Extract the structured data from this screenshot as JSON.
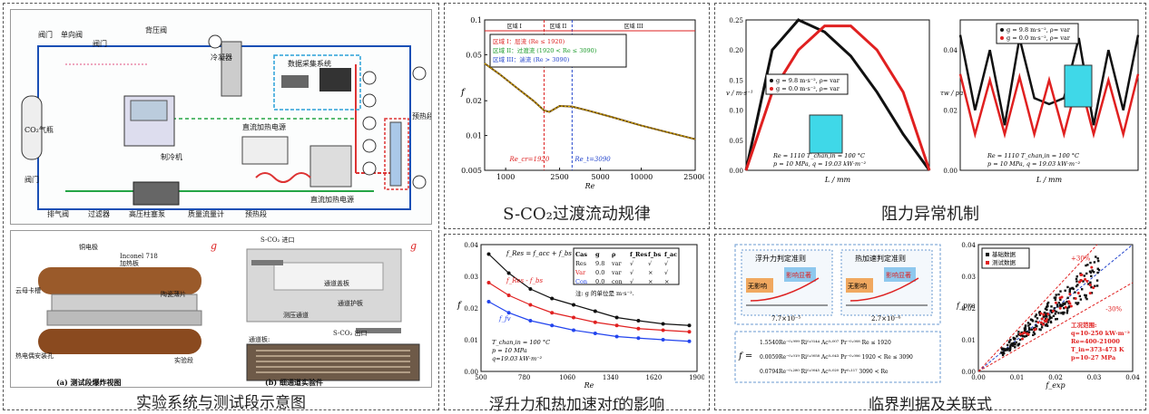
{
  "captions": {
    "left": "实验系统与测试段示意图",
    "mid_top": "S-CO₂过渡流动规律",
    "mid_bot": "浮升力和热加速对f的影响",
    "right_top": "阻力异常机制",
    "right_bot": "临界判据及关联式"
  },
  "schematic": {
    "labels": [
      "阀门",
      "单向阀",
      "阀门",
      "背压阀",
      "冷凝器",
      "数据采集系统",
      "CO₂气瓶",
      "制冷机",
      "直流加热电源",
      "直流加热电源",
      "预热段",
      "排气阀",
      "阀门",
      "过滤器",
      "高压柱塞泵",
      "质量流量计",
      "预热段"
    ],
    "sensors": [
      "T",
      "T",
      "P",
      "T",
      "T",
      "T",
      "T",
      "P"
    ]
  },
  "testsec": {
    "a_labels": [
      "铜电极",
      "Inconel 718加热板",
      "陶瓷薄片",
      "云母卡槽",
      "热电偶安装孔",
      "实验段"
    ],
    "b_labels": [
      "S-CO₂ 进口",
      "通道盖板",
      "通道护板",
      "测压通道",
      "S-CO₂ 出口",
      "通道板:"
    ],
    "a_caption": "(a) 测试段爆炸视图",
    "b_caption": "(b) 细通道实验件"
  },
  "chart_data": [
    {
      "type": "line",
      "title": "",
      "xlabel": "Re",
      "ylabel": "f",
      "yscale": "log",
      "xscale": "log",
      "xlim": [
        700,
        25000
      ],
      "ylim": [
        0.005,
        0.1
      ],
      "xticks": [
        "1000",
        "2500",
        "5000",
        "10000",
        "25000"
      ],
      "yticks": [
        "0.005",
        "0.01",
        "0.02",
        "0.05",
        "0.1"
      ],
      "regions": [
        "区域 I",
        "区域 II",
        "区域 III"
      ],
      "legend": [
        "区域 I：层流 (Re ≤ 1920)",
        "区域 II：过渡流 (1920 < Re ≤ 3090)",
        "区域 III：湍流 (Re > 3090)"
      ],
      "annotations": [
        "Re_cr=1920",
        "Re_t=3090"
      ],
      "x": [
        700,
        900,
        1200,
        1600,
        1920,
        2100,
        2500,
        3090,
        4000,
        6000,
        10000,
        15000,
        25000
      ],
      "y": [
        0.042,
        0.034,
        0.026,
        0.02,
        0.0165,
        0.016,
        0.018,
        0.0178,
        0.0165,
        0.0145,
        0.0122,
        0.0108,
        0.0093
      ]
    },
    {
      "type": "line",
      "xlabel": "Re",
      "ylabel": "f",
      "xlim": [
        500,
        1900
      ],
      "ylim": [
        0,
        0.04
      ],
      "xticks": [
        "500",
        "780",
        "1060",
        "1340",
        "1620",
        "1900"
      ],
      "yticks": [
        "0.00",
        "0.01",
        "0.02",
        "0.03",
        "0.04"
      ],
      "note": "注: g 的单位是 m·s⁻².",
      "conditions": [
        "T_chan,in = 100 °C",
        "p = 10 MPa",
        "q=19.03 kW·m⁻²"
      ],
      "eq": "f_Res = f_acc + f_bs",
      "table_header": [
        "Cas",
        "g",
        "ρ",
        "f_Res",
        "f_bs",
        "f_ac"
      ],
      "table_rows": [
        [
          "Res",
          "9.8",
          "var",
          "√",
          "√",
          "√"
        ],
        [
          "Var",
          "0.0",
          "var",
          "√",
          "×",
          "√"
        ],
        [
          "Con",
          "0.0",
          "con",
          "√",
          "×",
          "×"
        ]
      ],
      "series": [
        {
          "name": "f_Res",
          "values": [
            0.037,
            0.031,
            0.026,
            0.023,
            0.021,
            0.019,
            0.017,
            0.016,
            0.015,
            0.0145
          ]
        },
        {
          "name": "f_Res - f_bs",
          "values": [
            0.028,
            0.024,
            0.021,
            0.0185,
            0.017,
            0.0155,
            0.0145,
            0.0135,
            0.013,
            0.0125
          ]
        },
        {
          "name": "f_fv",
          "values": [
            0.022,
            0.0185,
            0.016,
            0.0145,
            0.013,
            0.012,
            0.011,
            0.0105,
            0.01,
            0.0095
          ]
        }
      ],
      "x": [
        550,
        680,
        820,
        960,
        1100,
        1240,
        1380,
        1520,
        1680,
        1850
      ]
    },
    {
      "type": "line",
      "xlabel": "L / mm",
      "ylabel": "v / m·s⁻¹",
      "ylim": [
        0,
        0.25
      ],
      "yticks": [
        "0.00",
        "0.05",
        "0.10",
        "0.15",
        "0.20",
        "0.25"
      ],
      "legend": [
        "g = 9.8 m·s⁻², ρ= var",
        "g = 0.0 m·s⁻², ρ= var"
      ],
      "conditions": [
        "Re = 1110 T_chan,in = 100 °C",
        "p = 10 MPa, q = 19.03 kW·m⁻²"
      ],
      "series": [
        {
          "name": "g = 9.8 m·s⁻², ρ= var",
          "values": [
            0.0,
            0.2,
            0.25,
            0.23,
            0.19,
            0.13,
            0.06,
            0.0
          ]
        },
        {
          "name": "g = 0.0 m·s⁻², ρ= var",
          "values": [
            0.0,
            0.13,
            0.2,
            0.24,
            0.24,
            0.2,
            0.13,
            0.0
          ]
        }
      ]
    },
    {
      "type": "line",
      "xlabel": "L / mm",
      "ylabel": "τw / pa",
      "ylim": [
        0,
        0.05
      ],
      "yticks": [
        "0.00",
        "0.02",
        "0.04"
      ],
      "legend": [
        "g = 9.8 m·s⁻², ρ= var",
        "g = 0.0 m·s⁻², ρ= var"
      ],
      "conditions": [
        "Re = 1110 T_chan,in = 100 °C",
        "p = 10 MPa, q = 19.03 kW·m⁻²"
      ]
    },
    {
      "type": "scatter",
      "xlabel": "f_exp",
      "ylabel": "f_pre",
      "xlim": [
        0,
        0.04
      ],
      "ylim": [
        0,
        0.04
      ],
      "xticks": [
        "0.00",
        "0.01",
        "0.02",
        "0.03",
        "0.04"
      ],
      "yticks": [
        "0.00",
        "0.01",
        "0.02",
        "0.03",
        "0.04"
      ],
      "legend": [
        "基础数据",
        "测试数据"
      ],
      "annotations": [
        "+30%",
        "-30%"
      ],
      "conditions": [
        "工况范围:",
        "q=10-250 kW·m⁻²",
        "Re=400-21000",
        "T_in=373-473 K",
        "p=10-27 MPa"
      ]
    }
  ],
  "criteria": {
    "box1": "浮升力判定准则",
    "box2": "热加速判定准则",
    "labels": [
      "无影响",
      "影响显著",
      "无影响",
      "影响显著"
    ],
    "thresh1": "7.7×10⁻⁵",
    "thresh2": "2.7×10⁻⁶",
    "formula": [
      "1.5540Re⁻⁰·⁹⁹⁹ Ri⁰·⁰¹⁴⁴ Ac⁰·⁰⁰⁷ Pr⁻⁰·⁰⁰⁸  Re ≤ 1920",
      "0.0059Re⁻⁰·⁰¹⁹ Ri⁰·⁰⁰⁵⁸ Ac⁰·⁰⁴³ Pr⁻⁰·⁰⁰⁶  1920 < Re ≤ 3090",
      "0.0794Re⁻⁰·²⁸⁰ Ri⁰·⁰⁰⁴⁵ Ac⁰·⁰²⁰ Pr⁰·¹¹⁷  3090 < Re"
    ]
  }
}
